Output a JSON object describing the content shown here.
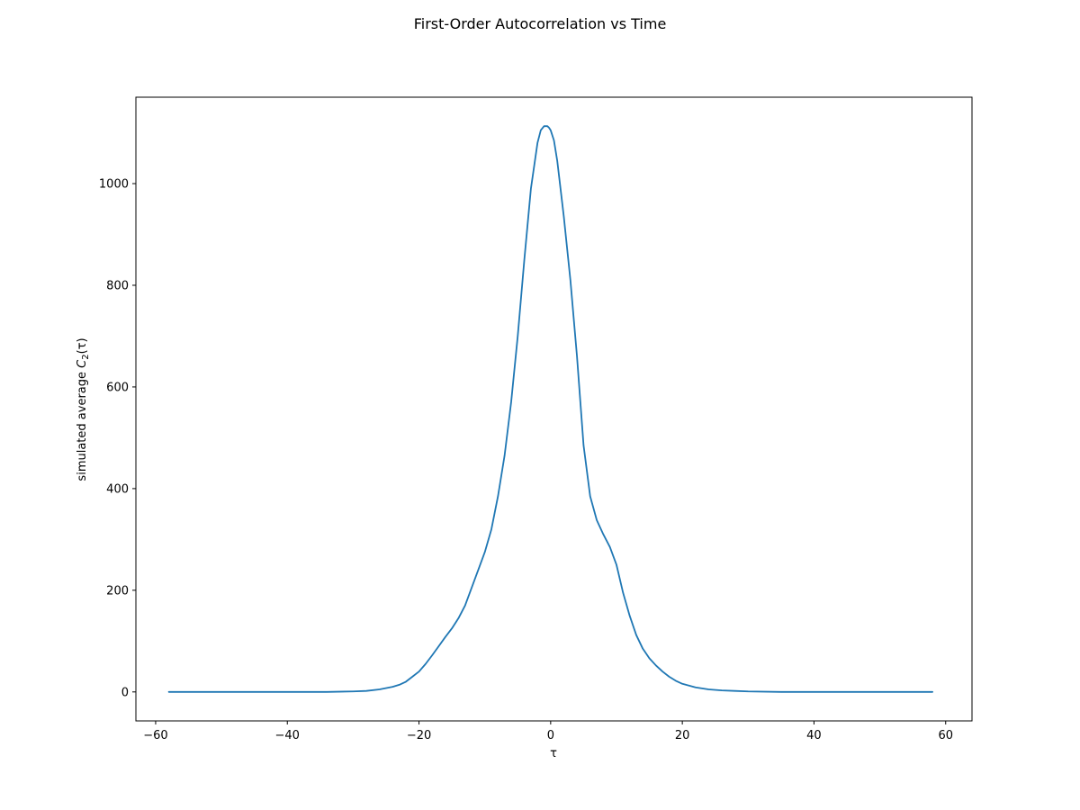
{
  "chart_data": {
    "type": "line",
    "title": "First-Order Autocorrelation vs Time",
    "xlabel": "τ",
    "ylabel": {
      "prefix": "simulated average ",
      "symbol": "C",
      "subscript": "2",
      "suffix": "(τ)"
    },
    "xlim": [
      -63,
      64
    ],
    "ylim": [
      -57,
      1170
    ],
    "xticks": [
      -60,
      -40,
      -20,
      0,
      20,
      40,
      60
    ],
    "yticks": [
      0,
      200,
      400,
      600,
      800,
      1000
    ],
    "xtick_labels": [
      "−60",
      "−40",
      "−20",
      "0",
      "20",
      "40",
      "60"
    ],
    "ytick_labels": [
      "0",
      "200",
      "400",
      "600",
      "800",
      "1000"
    ],
    "grid": false,
    "colors": {
      "series": "#1f77b4",
      "axes": "#000000"
    },
    "series": [
      {
        "x": [
          -58,
          -50,
          -40,
          -34,
          -30,
          -28,
          -26,
          -24,
          -23,
          -22,
          -21,
          -20,
          -19,
          -18,
          -17,
          -16,
          -15,
          -14,
          -13,
          -12,
          -11,
          -10,
          -9,
          -8,
          -7,
          -6,
          -5,
          -4,
          -3,
          -2,
          -1.5,
          -1,
          -0.5,
          -0.25,
          0,
          0.5,
          1,
          1.5,
          2,
          3,
          4,
          5,
          6,
          7,
          8,
          9,
          10,
          11,
          12,
          13,
          14,
          15,
          16,
          17,
          18,
          19,
          20,
          22,
          24,
          26,
          28,
          30,
          35,
          40,
          50,
          58
        ],
        "y": [
          0,
          0,
          0,
          0,
          1,
          2,
          5,
          10,
          14,
          20,
          30,
          40,
          55,
          72,
          90,
          108,
          125,
          145,
          170,
          205,
          240,
          275,
          320,
          385,
          465,
          570,
          700,
          850,
          990,
          1080,
          1105,
          1113,
          1113,
          1110,
          1105,
          1085,
          1045,
          990,
          935,
          810,
          660,
          485,
          385,
          338,
          310,
          285,
          250,
          195,
          150,
          112,
          85,
          66,
          52,
          40,
          30,
          22,
          16,
          9,
          5,
          3,
          2,
          1,
          0,
          0,
          0,
          0
        ]
      }
    ]
  }
}
